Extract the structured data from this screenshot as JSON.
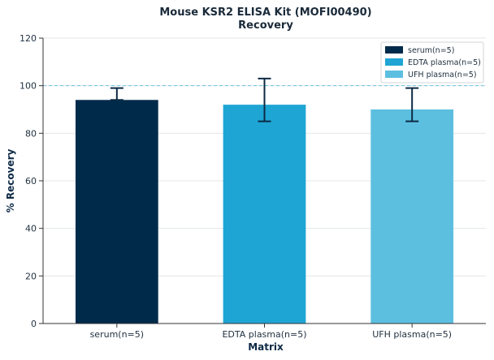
{
  "chart_data": {
    "type": "bar",
    "title": "Mouse KSR2 ELISA Kit (MOFI00490)",
    "subtitle": "Recovery",
    "xlabel": "Matrix",
    "ylabel": "% Recovery",
    "ylim": [
      0,
      120
    ],
    "yticks": [
      0,
      20,
      40,
      60,
      80,
      100,
      120
    ],
    "categories": [
      "serum(n=5)",
      "EDTA plasma(n=5)",
      "UFH plasma(n=5)"
    ],
    "values": [
      94,
      92,
      90
    ],
    "error_low": [
      94,
      85,
      85
    ],
    "error_high": [
      99,
      103,
      99
    ],
    "colors": [
      "#002a4a",
      "#1ea5d4",
      "#5cbfe0"
    ],
    "reference_line": 100,
    "grid": "horizontal",
    "legend": {
      "placement": "top-right",
      "entries": [
        "serum(n=5)",
        "EDTA plasma(n=5)",
        "UFH plasma(n=5)"
      ]
    }
  }
}
